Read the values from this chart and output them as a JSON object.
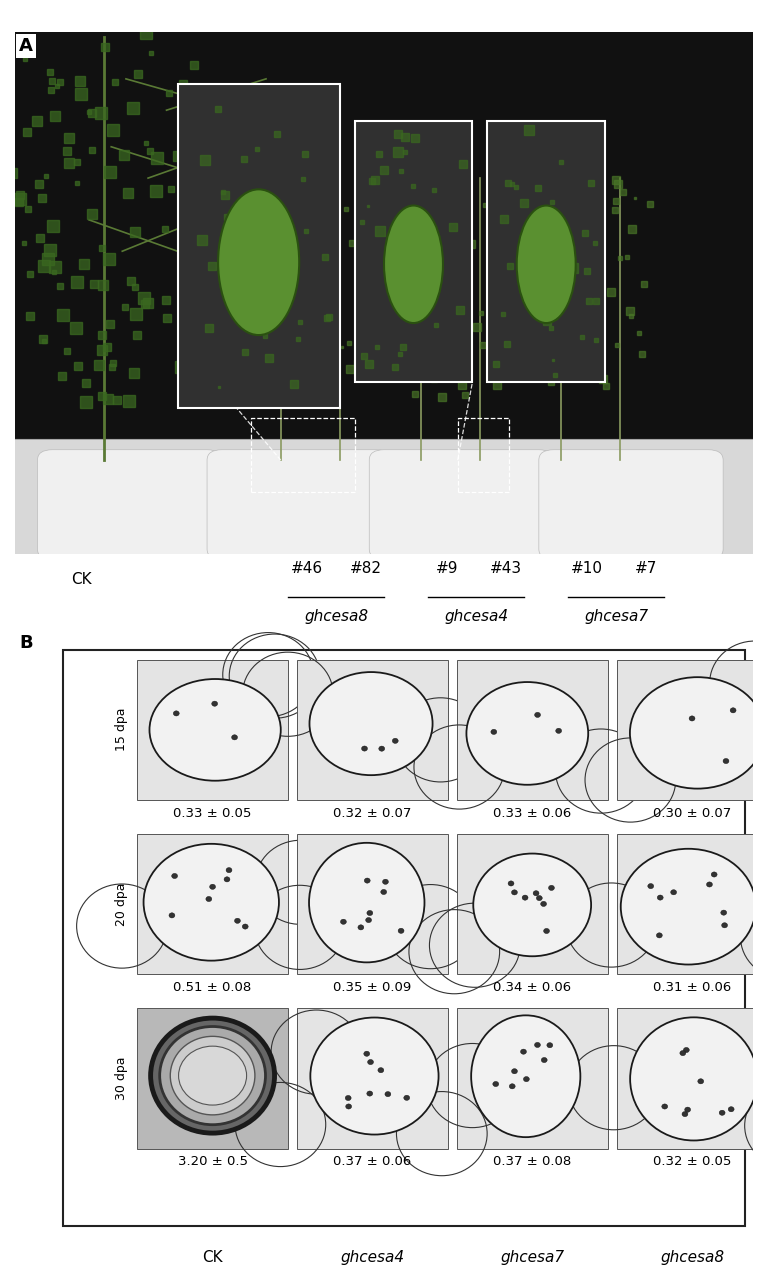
{
  "label_A": "A",
  "label_B": "B",
  "row_labels": [
    "15 dpa",
    "20 dpa",
    "30 dpa"
  ],
  "col_labels_B": [
    "CK",
    "ghcesa4",
    "ghcesa7",
    "ghcesa8"
  ],
  "col_labels_A_numbers": [
    [
      "#46",
      "#82"
    ],
    [
      "#9",
      "#43"
    ],
    [
      "#10",
      "#7"
    ]
  ],
  "col_labels_A_genes": [
    "ghcesa8",
    "ghcesa4",
    "ghcesa7"
  ],
  "col_label_A_CK": "CK",
  "measurements": [
    [
      "0.33 ± 0.05",
      "0.32 ± 0.07",
      "0.33 ± 0.06",
      "0.30 ± 0.07"
    ],
    [
      "0.51 ± 0.08",
      "0.35 ± 0.09",
      "0.34 ± 0.06",
      "0.31 ± 0.06"
    ],
    [
      "3.20 ± 0.5",
      "0.37 ± 0.06",
      "0.37 ± 0.08",
      "0.32 ± 0.05"
    ]
  ],
  "bg_color": "#ffffff",
  "photo_bg": "#111111",
  "photo_bg_light": "#cccccc",
  "cell_bg": "#e8e8e8",
  "cell_border": "#444444",
  "text_color": "#000000",
  "white": "#ffffff",
  "font_size_panel": 13,
  "font_size_label": 11,
  "font_size_meas": 9.5,
  "font_size_row": 9,
  "figsize": [
    7.68,
    12.74
  ],
  "dpi": 100
}
